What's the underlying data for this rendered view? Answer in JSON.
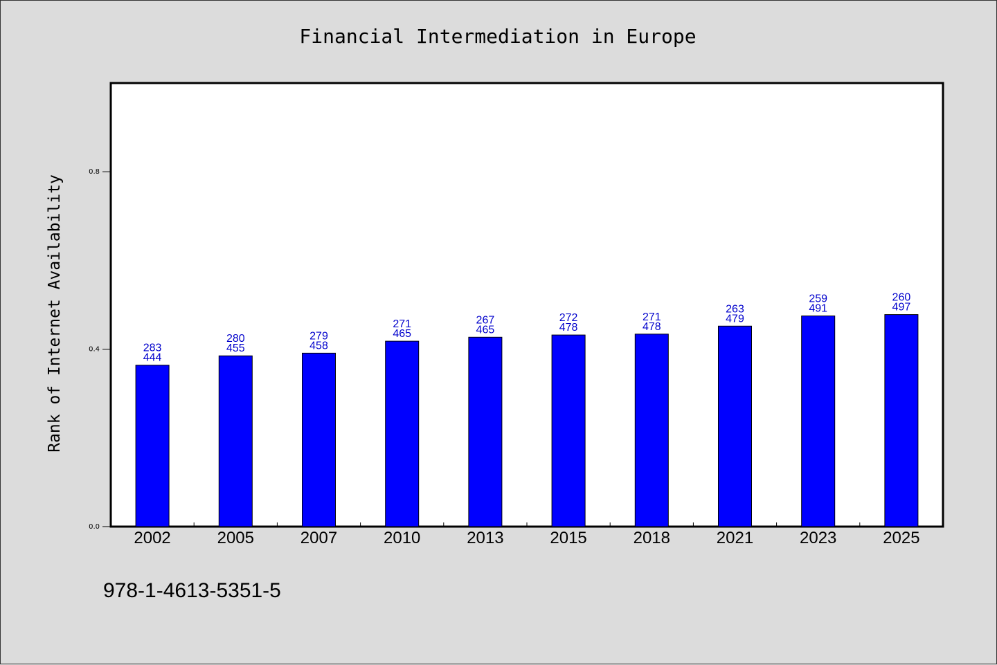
{
  "chart_data": {
    "type": "bar",
    "title": "Financial Intermediation in Europe",
    "xlabel": "",
    "ylabel": "Rank of Internet Availability",
    "categories": [
      "2002",
      "2005",
      "2007",
      "2010",
      "2013",
      "2015",
      "2018",
      "2021",
      "2023",
      "2025"
    ],
    "values": [
      0.364,
      0.385,
      0.391,
      0.418,
      0.427,
      0.432,
      0.434,
      0.452,
      0.475,
      0.478
    ],
    "label_top": [
      "283",
      "280",
      "279",
      "271",
      "267",
      "272",
      "271",
      "263",
      "259",
      "260"
    ],
    "label_bottom": [
      "444",
      "455",
      "458",
      "465",
      "465",
      "478",
      "478",
      "479",
      "491",
      "497"
    ],
    "ylim": [
      0.0,
      1.0
    ],
    "yticks": [
      0.0,
      0.4,
      0.8
    ],
    "ytick_labels": [
      "0.0",
      "0.4",
      "0.8"
    ],
    "grid": false,
    "legend": "none",
    "colors": {
      "bar": "#0000ff",
      "data_label": "#0000cc",
      "background": "#dcdcdc",
      "plot_background": "#ffffff"
    }
  },
  "footer_text": "978-1-4613-5351-5"
}
